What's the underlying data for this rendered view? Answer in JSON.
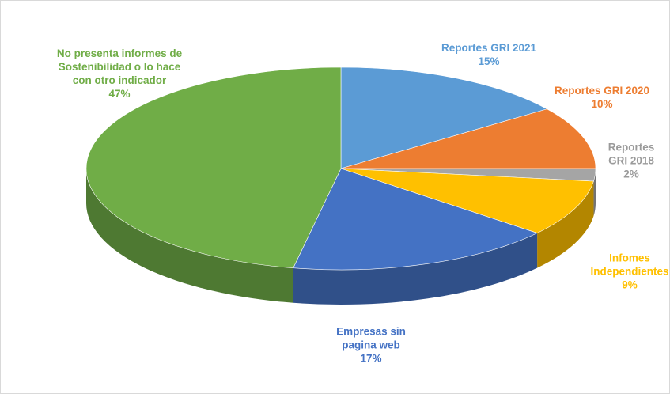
{
  "chart_data": {
    "type": "pie3d",
    "categories": [
      "Reportes GRI 2021",
      "Reportes GRI 2020",
      "Reportes GRI 2018",
      "Infomes Independientes",
      "Empresas sin pagina web",
      "No presenta informes de Sostenibilidad o lo hace con otro indicador"
    ],
    "values": [
      15,
      10,
      2,
      9,
      17,
      47
    ],
    "value_labels": [
      "15%",
      "10%",
      "2%",
      "9%",
      "17%",
      "47%"
    ],
    "colors": [
      "#5b9bd5",
      "#ed7d31",
      "#a5a5a5",
      "#ffc000",
      "#4472c4",
      "#70ad47"
    ]
  }
}
